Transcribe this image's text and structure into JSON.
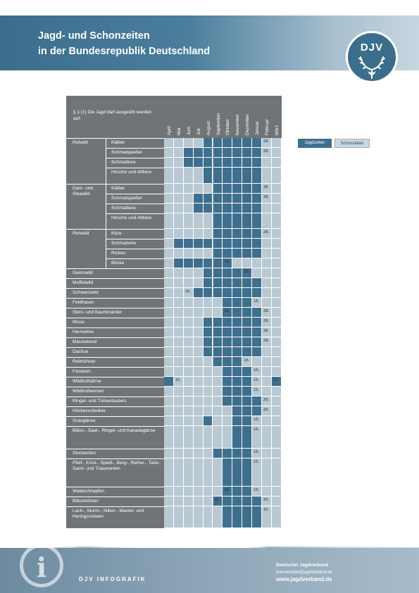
{
  "header": {
    "title_line1": "Jagd- und Schonzeiten",
    "title_line2": "in der Bundesrepublik Deutschland",
    "logo_text": "DJV"
  },
  "table": {
    "header_text": "§ 1 (1) Die Jagd darf ausgeübt werden auf:",
    "months": [
      "April",
      "Mai",
      "Juni",
      "Juli",
      "August",
      "September",
      "Oktober",
      "November",
      "Dezember",
      "Januar",
      "Februar",
      "März"
    ],
    "rows": [
      {
        "group": "Rotwild",
        "label": "Kälber",
        "lines": 1,
        "open": [
          0,
          0,
          0,
          0,
          1,
          1,
          1,
          1,
          1,
          1,
          0,
          0
        ],
        "notes": [
          {
            "m": 10,
            "t": "28."
          }
        ]
      },
      {
        "group": "",
        "label": "Schmalspießer",
        "lines": 1,
        "open": [
          0,
          0,
          1,
          1,
          1,
          1,
          1,
          1,
          1,
          1,
          0,
          0
        ],
        "notes": [
          {
            "m": 10,
            "t": "28."
          }
        ]
      },
      {
        "group": "",
        "label": "Schmaltiere",
        "lines": 1,
        "open": [
          0,
          0,
          1,
          1,
          1,
          1,
          1,
          1,
          1,
          1,
          0,
          0
        ],
        "notes": []
      },
      {
        "group": "",
        "label": "Hirsche und Alttiere",
        "lines": 2,
        "open": [
          0,
          0,
          0,
          0,
          1,
          1,
          1,
          1,
          1,
          1,
          0,
          0
        ],
        "notes": []
      },
      {
        "group": "Dam- und Sikawild",
        "label": "Kälber",
        "lines": 1,
        "open": [
          0,
          0,
          0,
          0,
          0,
          1,
          1,
          1,
          1,
          1,
          0,
          0
        ],
        "notes": [
          {
            "m": 10,
            "t": "28."
          }
        ]
      },
      {
        "group": "",
        "label": "Schmalspießer",
        "lines": 1,
        "open": [
          0,
          0,
          0,
          1,
          1,
          1,
          1,
          1,
          1,
          1,
          0,
          0
        ],
        "notes": [
          {
            "m": 10,
            "t": "28."
          }
        ]
      },
      {
        "group": "",
        "label": "Schmaltiere",
        "lines": 1,
        "open": [
          0,
          0,
          0,
          1,
          1,
          1,
          1,
          1,
          1,
          1,
          0,
          0
        ],
        "notes": []
      },
      {
        "group": "",
        "label": "Hirsche und Alttiere",
        "lines": 2,
        "open": [
          0,
          0,
          0,
          0,
          0,
          1,
          1,
          1,
          1,
          1,
          0,
          0
        ],
        "notes": []
      },
      {
        "group": "Rehwild",
        "label": "Kitze",
        "lines": 1,
        "open": [
          0,
          0,
          0,
          0,
          0,
          1,
          1,
          1,
          1,
          1,
          0,
          0
        ],
        "notes": [
          {
            "m": 10,
            "t": "28."
          }
        ]
      },
      {
        "group": "",
        "label": "Schmalrehe",
        "lines": 1,
        "open": [
          0,
          1,
          1,
          1,
          1,
          1,
          1,
          1,
          1,
          1,
          0,
          0
        ],
        "notes": []
      },
      {
        "group": "",
        "label": "Ricken",
        "lines": 1,
        "open": [
          0,
          0,
          0,
          0,
          0,
          1,
          1,
          1,
          1,
          1,
          0,
          0
        ],
        "notes": []
      },
      {
        "group": "",
        "label": "Böcke",
        "lines": 1,
        "open": [
          0,
          1,
          1,
          1,
          1,
          1,
          1,
          0,
          0,
          0,
          0,
          0
        ],
        "notes": [
          {
            "m": 6,
            "t": "15."
          }
        ]
      },
      {
        "group": "Gamswild",
        "label": "",
        "lines": 1,
        "open": [
          0,
          0,
          0,
          0,
          1,
          1,
          1,
          1,
          1,
          0,
          0,
          0
        ],
        "notes": [
          {
            "m": 8,
            "t": "15."
          }
        ]
      },
      {
        "group": "Muffelwild",
        "label": "",
        "lines": 1,
        "open": [
          0,
          0,
          0,
          0,
          1,
          1,
          1,
          1,
          1,
          1,
          0,
          0
        ],
        "notes": []
      },
      {
        "group": "Schwarzwild",
        "label": "",
        "lines": 1,
        "open": [
          0,
          0,
          0,
          1,
          1,
          1,
          1,
          1,
          1,
          1,
          0,
          0
        ],
        "notes": [
          {
            "m": 2,
            "t": "16."
          }
        ]
      },
      {
        "group": "Feldhasen",
        "label": "",
        "lines": 1,
        "open": [
          0,
          0,
          0,
          0,
          0,
          0,
          1,
          1,
          1,
          0,
          0,
          0
        ],
        "notes": [
          {
            "m": 9,
            "t": "15."
          }
        ]
      },
      {
        "group": "Stein- und Baummarder",
        "label": "",
        "lines": 1,
        "open": [
          0,
          0,
          0,
          0,
          0,
          0,
          1,
          1,
          1,
          1,
          0,
          0
        ],
        "notes": [
          {
            "m": 6,
            "t": "16."
          },
          {
            "m": 10,
            "t": "28."
          }
        ]
      },
      {
        "group": "Iltisse",
        "label": "",
        "lines": 1,
        "open": [
          0,
          0,
          0,
          0,
          1,
          1,
          1,
          1,
          1,
          1,
          0,
          0
        ],
        "notes": [
          {
            "m": 10,
            "t": "28."
          }
        ]
      },
      {
        "group": "Hermeline",
        "label": "",
        "lines": 1,
        "open": [
          0,
          0,
          0,
          0,
          1,
          1,
          1,
          1,
          1,
          1,
          0,
          0
        ],
        "notes": [
          {
            "m": 10,
            "t": "28."
          }
        ]
      },
      {
        "group": "Mauswiesel",
        "label": "",
        "lines": 1,
        "open": [
          0,
          0,
          0,
          0,
          1,
          1,
          1,
          1,
          1,
          1,
          0,
          0
        ],
        "notes": [
          {
            "m": 10,
            "t": "28."
          }
        ]
      },
      {
        "group": "Dachse",
        "label": "",
        "lines": 1,
        "open": [
          0,
          0,
          0,
          0,
          1,
          1,
          1,
          1,
          1,
          1,
          0,
          0
        ],
        "notes": []
      },
      {
        "group": "Rebhühner",
        "label": "",
        "lines": 1,
        "open": [
          0,
          0,
          0,
          0,
          0,
          1,
          1,
          1,
          0,
          0,
          0,
          0
        ],
        "notes": [
          {
            "m": 8,
            "t": "15."
          }
        ]
      },
      {
        "group": "Fasanen",
        "label": "",
        "lines": 1,
        "open": [
          0,
          0,
          0,
          0,
          0,
          0,
          1,
          1,
          1,
          0,
          0,
          0
        ],
        "notes": [
          {
            "m": 9,
            "t": "15."
          }
        ]
      },
      {
        "group": "Wildtruthähne",
        "label": "",
        "lines": 1,
        "open": [
          1,
          0,
          0,
          0,
          0,
          0,
          1,
          1,
          1,
          0,
          0,
          1
        ],
        "notes": [
          {
            "m": 1,
            "t": "15."
          },
          {
            "m": 9,
            "t": "15."
          },
          {
            "m": 11,
            "t": "15."
          }
        ]
      },
      {
        "group": "Wildtruthennen",
        "label": "",
        "lines": 1,
        "open": [
          0,
          0,
          0,
          0,
          0,
          0,
          1,
          1,
          1,
          0,
          0,
          0
        ],
        "notes": [
          {
            "m": 9,
            "t": "15."
          }
        ]
      },
      {
        "group": "Ringel- und Türkentauben",
        "label": "",
        "lines": 1,
        "open": [
          0,
          0,
          0,
          0,
          0,
          0,
          1,
          1,
          1,
          1,
          0,
          0
        ],
        "notes": [
          {
            "m": 10,
            "t": "20."
          }
        ]
      },
      {
        "group": "Höckerschwäne",
        "label": "",
        "lines": 1,
        "open": [
          0,
          0,
          0,
          0,
          0,
          0,
          0,
          1,
          1,
          1,
          0,
          0
        ],
        "notes": [
          {
            "m": 10,
            "t": "20."
          }
        ]
      },
      {
        "group": "Graugänse",
        "label": "",
        "lines": 1,
        "open": [
          0,
          0,
          0,
          0,
          1,
          0,
          0,
          1,
          1,
          0,
          0,
          0
        ],
        "notes": [
          {
            "m": 9,
            "t": "15."
          }
        ]
      },
      {
        "group": "Bläss-, Saat-, Ringel- und Kanadagänse",
        "label": "",
        "lines": 3,
        "open": [
          0,
          0,
          0,
          0,
          0,
          0,
          0,
          1,
          1,
          0,
          0,
          0
        ],
        "notes": [
          {
            "m": 9,
            "t": "15."
          }
        ]
      },
      {
        "group": "Stockenten",
        "label": "",
        "lines": 1,
        "open": [
          0,
          0,
          0,
          0,
          0,
          1,
          1,
          1,
          1,
          0,
          0,
          0
        ],
        "notes": [
          {
            "m": 9,
            "t": "15."
          }
        ]
      },
      {
        "group": "Pfeif-, Krick-, Spieß-, Berg-, Reiher-, Tafel-, Samt- und Trauerenten",
        "label": "",
        "lines": 4,
        "open": [
          0,
          0,
          0,
          0,
          0,
          0,
          1,
          1,
          1,
          0,
          0,
          0
        ],
        "notes": [
          {
            "m": 9,
            "t": "15."
          }
        ]
      },
      {
        "group": "Waldschnepfen",
        "label": "",
        "lines": 1,
        "open": [
          0,
          0,
          0,
          0,
          0,
          0,
          1,
          1,
          1,
          0,
          0,
          0
        ],
        "notes": [
          {
            "m": 6,
            "t": "16."
          },
          {
            "m": 9,
            "t": "15."
          }
        ]
      },
      {
        "group": "Blässhühner",
        "label": "",
        "lines": 1,
        "open": [
          0,
          0,
          0,
          0,
          0,
          1,
          1,
          1,
          1,
          1,
          0,
          0
        ],
        "notes": [
          {
            "m": 5,
            "t": "11."
          },
          {
            "m": 10,
            "t": "20."
          }
        ]
      },
      {
        "group": "Lach-, Sturm-, Silber-, Mantel- und Heringsmöwen",
        "label": "",
        "lines": 3,
        "open": [
          0,
          0,
          0,
          0,
          0,
          0,
          1,
          1,
          1,
          1,
          0,
          0
        ],
        "notes": [
          {
            "m": 10,
            "t": "10."
          }
        ]
      }
    ]
  },
  "legend": {
    "open_label": "Jagdzeiten",
    "closed_label": "Schonzeiten"
  },
  "footer": {
    "brand": "DJV INFOGRAFIK",
    "org": "Deutscher Jagdverband",
    "email": "pressestelle@jagdverband.de",
    "web": "www.jagdverband.de"
  }
}
